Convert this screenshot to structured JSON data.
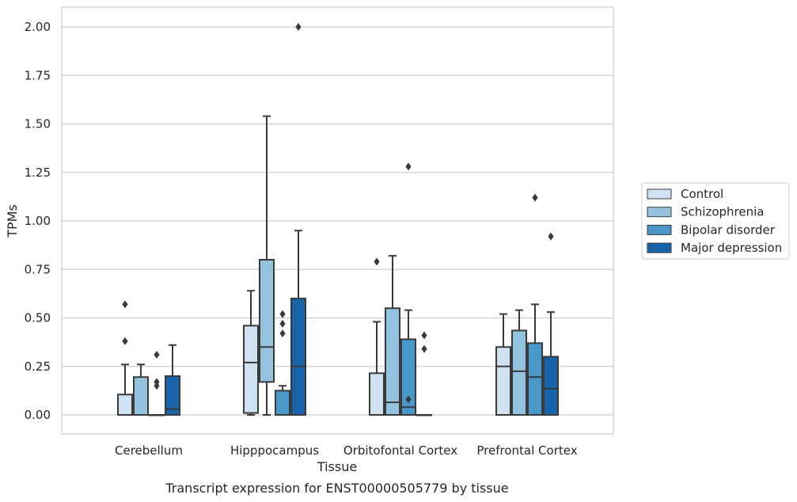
{
  "chart_data": {
    "type": "boxplot",
    "title": "",
    "caption": "Transcript expression for ENST00000505779 by tissue",
    "xlabel": "Tissue",
    "ylabel": "TPMs",
    "ylim": [
      -0.1,
      2.1
    ],
    "yticks": [
      0.0,
      0.25,
      0.5,
      0.75,
      1.0,
      1.25,
      1.5,
      1.75,
      2.0
    ],
    "ytick_labels": [
      "0.00",
      "0.25",
      "0.50",
      "0.75",
      "1.00",
      "1.25",
      "1.50",
      "1.75",
      "2.00"
    ],
    "grid": "horizontal",
    "legend_position": "right",
    "categories": [
      "Cerebellum",
      "Hipppocampus",
      "Orbitofontal Cortex",
      "Prefrontal Cortex"
    ],
    "series": [
      {
        "name": "Control",
        "color": "#d0e1f2",
        "boxes": [
          {
            "q1": 0.0,
            "median": 0.0,
            "q3": 0.105,
            "whisker_low": 0.0,
            "whisker_high": 0.26,
            "outliers": [
              0.38,
              0.57
            ]
          },
          {
            "q1": 0.01,
            "median": 0.27,
            "q3": 0.46,
            "whisker_low": 0.0,
            "whisker_high": 0.64,
            "outliers": []
          },
          {
            "q1": 0.0,
            "median": 0.0,
            "q3": 0.215,
            "whisker_low": 0.0,
            "whisker_high": 0.48,
            "outliers": [
              0.79
            ]
          },
          {
            "q1": 0.0,
            "median": 0.25,
            "q3": 0.35,
            "whisker_low": 0.0,
            "whisker_high": 0.52,
            "outliers": []
          }
        ]
      },
      {
        "name": "Schizophrenia",
        "color": "#94c4df",
        "boxes": [
          {
            "q1": 0.0,
            "median": 0.0,
            "q3": 0.195,
            "whisker_low": 0.0,
            "whisker_high": 0.26,
            "outliers": []
          },
          {
            "q1": 0.17,
            "median": 0.35,
            "q3": 0.8,
            "whisker_low": 0.0,
            "whisker_high": 1.54,
            "outliers": []
          },
          {
            "q1": 0.0,
            "median": 0.065,
            "q3": 0.55,
            "whisker_low": 0.0,
            "whisker_high": 0.82,
            "outliers": []
          },
          {
            "q1": 0.0,
            "median": 0.225,
            "q3": 0.435,
            "whisker_low": 0.0,
            "whisker_high": 0.54,
            "outliers": []
          }
        ]
      },
      {
        "name": "Bipolar disorder",
        "color": "#4a98c9",
        "boxes": [
          {
            "q1": 0.0,
            "median": 0.0,
            "q3": 0.0,
            "whisker_low": 0.0,
            "whisker_high": 0.0,
            "outliers": [
              0.15,
              0.17,
              0.31
            ]
          },
          {
            "q1": 0.0,
            "median": 0.0,
            "q3": 0.125,
            "whisker_low": 0.0,
            "whisker_high": 0.15,
            "outliers": [
              0.42,
              0.47,
              0.52
            ]
          },
          {
            "q1": 0.0,
            "median": 0.04,
            "q3": 0.39,
            "whisker_low": 0.0,
            "whisker_high": 0.54,
            "outliers": [
              0.08,
              1.28
            ]
          },
          {
            "q1": 0.0,
            "median": 0.195,
            "q3": 0.37,
            "whisker_low": 0.0,
            "whisker_high": 0.57,
            "outliers": [
              1.12
            ]
          }
        ]
      },
      {
        "name": "Major depression",
        "color": "#1764ab",
        "boxes": [
          {
            "q1": 0.0,
            "median": 0.03,
            "q3": 0.2,
            "whisker_low": 0.0,
            "whisker_high": 0.36,
            "outliers": []
          },
          {
            "q1": 0.0,
            "median": 0.25,
            "q3": 0.6,
            "whisker_low": 0.0,
            "whisker_high": 0.95,
            "outliers": [
              2.0
            ]
          },
          {
            "q1": 0.0,
            "median": 0.0,
            "q3": 0.0,
            "whisker_low": 0.0,
            "whisker_high": 0.0,
            "outliers": [
              0.34,
              0.41
            ]
          },
          {
            "q1": 0.0,
            "median": 0.135,
            "q3": 0.3,
            "whisker_low": 0.0,
            "whisker_high": 0.53,
            "outliers": [
              0.92
            ]
          }
        ]
      }
    ]
  }
}
